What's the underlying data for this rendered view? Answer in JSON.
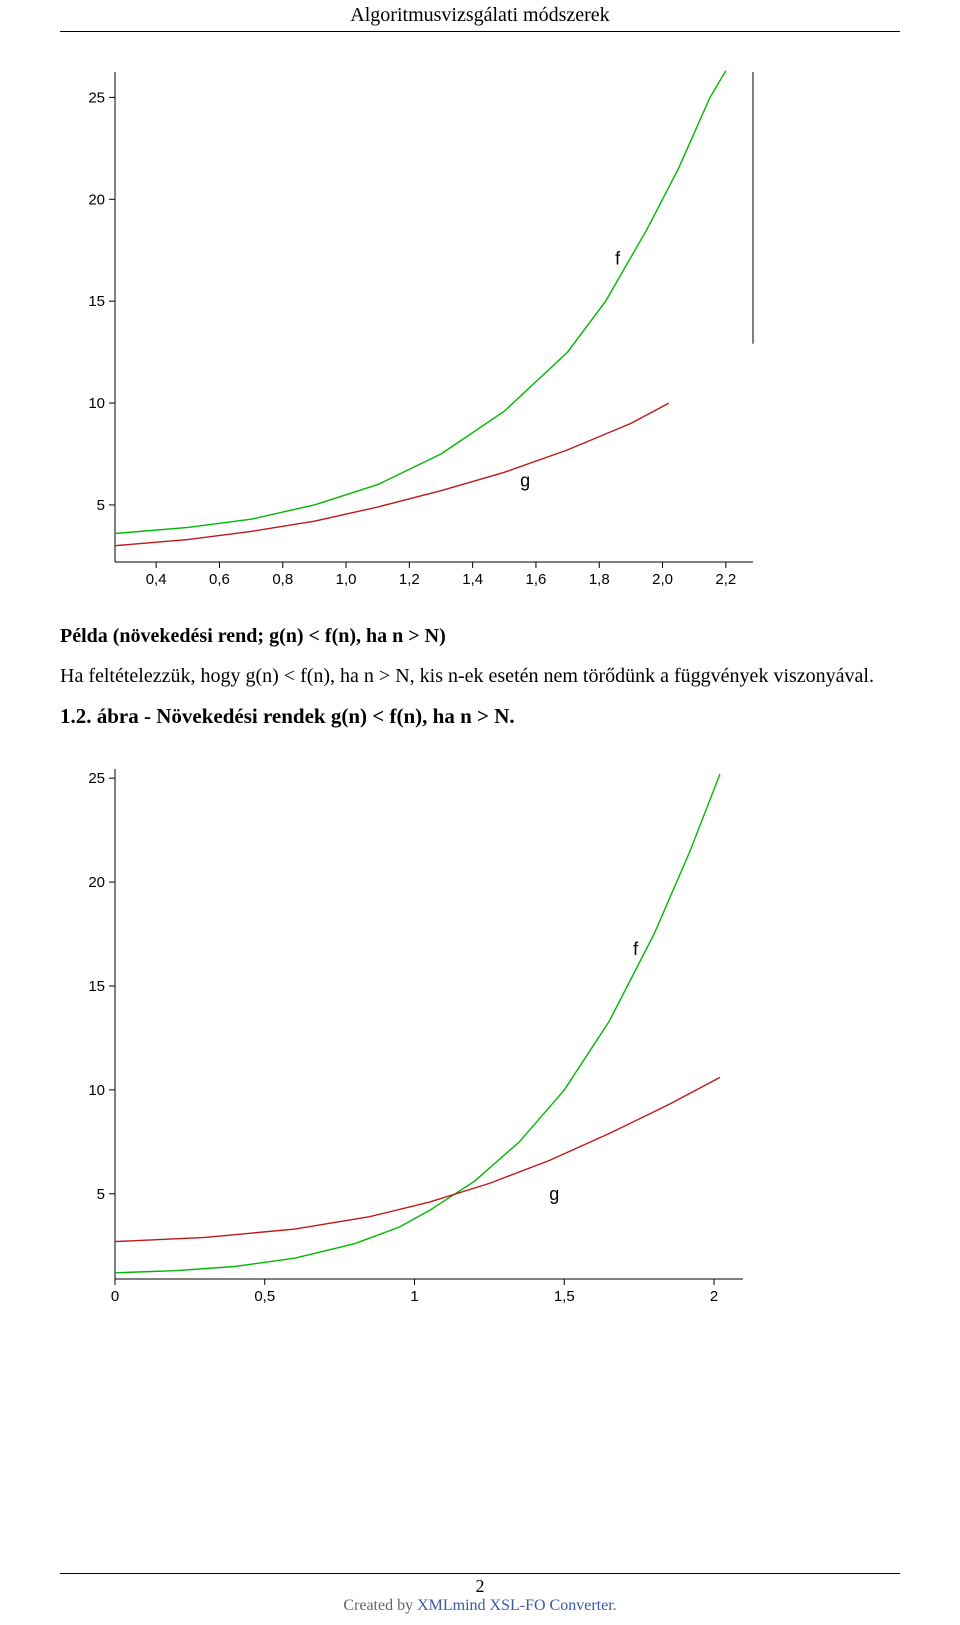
{
  "header": {
    "title": "Algoritmusvizsgálati módszerek"
  },
  "chart1": {
    "type": "line",
    "background_color": "#ffffff",
    "axis_color": "#000000",
    "tick_font_size": 15,
    "line_width": 1.4,
    "x": {
      "min": 0.27,
      "max": 2.27,
      "ticks": [
        0.4,
        0.6,
        0.8,
        1.0,
        1.2,
        1.4,
        1.6,
        1.8,
        2.0,
        2.2
      ],
      "tick_labels": [
        "0,4",
        "0,6",
        "0,8",
        "1,0",
        "1,2",
        "1,4",
        "1,6",
        "1,8",
        "2,0",
        "2,2"
      ]
    },
    "y": {
      "min": 2.2,
      "max": 26.0,
      "ticks": [
        5,
        10,
        15,
        20,
        25
      ],
      "tick_labels": [
        "5",
        "10",
        "15",
        "20",
        "25"
      ]
    },
    "series": [
      {
        "name": "f",
        "color": "#00b800",
        "label_xy": [
          1.85,
          16.8
        ],
        "points": [
          [
            0.27,
            3.6
          ],
          [
            0.5,
            3.9
          ],
          [
            0.7,
            4.3
          ],
          [
            0.9,
            5.0
          ],
          [
            1.1,
            6.0
          ],
          [
            1.3,
            7.5
          ],
          [
            1.5,
            9.6
          ],
          [
            1.7,
            12.5
          ],
          [
            1.82,
            15.0
          ],
          [
            1.95,
            18.5
          ],
          [
            2.05,
            21.5
          ],
          [
            2.15,
            25.0
          ],
          [
            2.2,
            26.3
          ]
        ]
      },
      {
        "name": "g",
        "color": "#c01818",
        "label_xy": [
          1.55,
          5.9
        ],
        "points": [
          [
            0.27,
            3.0
          ],
          [
            0.5,
            3.3
          ],
          [
            0.7,
            3.7
          ],
          [
            0.9,
            4.2
          ],
          [
            1.1,
            4.9
          ],
          [
            1.3,
            5.7
          ],
          [
            1.5,
            6.6
          ],
          [
            1.7,
            7.7
          ],
          [
            1.9,
            9.0
          ],
          [
            2.02,
            10.0
          ]
        ]
      }
    ],
    "label_font_size": 18
  },
  "para1": {
    "prefix_bold": "Példa (növekedési rend; g(n) < f(n), ha n > N)",
    "rest": ""
  },
  "para2": "Ha feltételezzük, hogy g(n) < f(n), ha n > N, kis n-ek esetén nem törődünk a függvények viszonyával.",
  "caption": "1.2. ábra - Növekedési rendek g(n) < f(n), ha n > N.",
  "chart2": {
    "type": "line",
    "background_color": "#ffffff",
    "axis_color": "#000000",
    "tick_font_size": 15,
    "line_width": 1.4,
    "x": {
      "min": 0.0,
      "max": 2.08,
      "ticks": [
        0,
        0.5,
        1,
        1.5,
        2
      ],
      "tick_labels": [
        "0",
        "0,5",
        "1",
        "1,5",
        "2"
      ]
    },
    "y": {
      "min": 0.9,
      "max": 25.2,
      "ticks": [
        5,
        10,
        15,
        20,
        25
      ],
      "tick_labels": [
        "5",
        "10",
        "15",
        "20",
        "25"
      ]
    },
    "series": [
      {
        "name": "f",
        "color": "#00b800",
        "label_xy": [
          1.73,
          16.5
        ],
        "points": [
          [
            0.0,
            1.2
          ],
          [
            0.2,
            1.3
          ],
          [
            0.4,
            1.5
          ],
          [
            0.6,
            1.9
          ],
          [
            0.8,
            2.6
          ],
          [
            0.95,
            3.4
          ],
          [
            1.05,
            4.2
          ],
          [
            1.2,
            5.6
          ],
          [
            1.35,
            7.5
          ],
          [
            1.5,
            10.0
          ],
          [
            1.65,
            13.3
          ],
          [
            1.8,
            17.5
          ],
          [
            1.92,
            21.5
          ],
          [
            2.02,
            25.2
          ]
        ]
      },
      {
        "name": "g",
        "color": "#c01818",
        "label_xy": [
          1.45,
          4.7
        ],
        "points": [
          [
            0.0,
            2.7
          ],
          [
            0.3,
            2.9
          ],
          [
            0.6,
            3.3
          ],
          [
            0.85,
            3.9
          ],
          [
            1.05,
            4.6
          ],
          [
            1.25,
            5.5
          ],
          [
            1.45,
            6.6
          ],
          [
            1.65,
            7.9
          ],
          [
            1.85,
            9.3
          ],
          [
            2.02,
            10.6
          ]
        ]
      }
    ],
    "label_font_size": 18
  },
  "footer": {
    "page_number": "2",
    "credit_prefix": "Created by ",
    "credit_link": "XMLmind XSL-FO Converter",
    "credit_suffix": "."
  }
}
